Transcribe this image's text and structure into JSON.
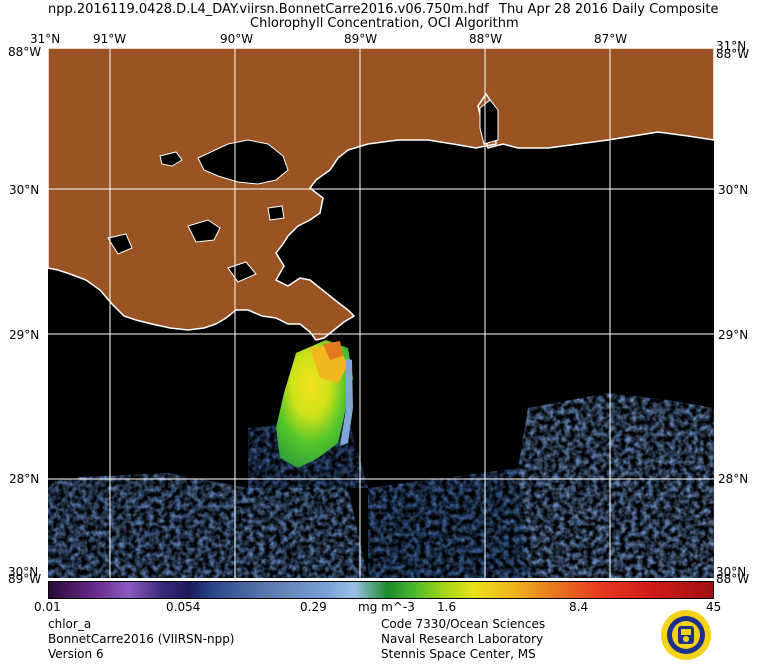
{
  "header": {
    "filename": "npp.2016119.0428.D.L4_DAY.viirsn.BonnetCarre2016.v06.750m.hdf",
    "date": "Thu Apr 28 2016 Daily Composite",
    "product": "Chlorophyll Concentration, OCI Algorithm"
  },
  "map": {
    "lon_top_labels": [
      "91°W",
      "90°W",
      "89°W",
      "88°W",
      "87°W"
    ],
    "lon_top_values": [
      -91,
      -90,
      -89,
      -88,
      -87
    ],
    "lat_labels": [
      "30°N",
      "29°N",
      "28°N"
    ],
    "lat_values": [
      30,
      29,
      28
    ],
    "corner_top_left_lat": "31°N",
    "corner_top_left_lon": "88°W",
    "corner_top_right_lat": "31°N",
    "corner_top_right_lon": "88°W",
    "corner_bottom_left_lat": "30°N",
    "corner_bottom_left_lon": "89°W",
    "corner_bottom_right_lat": "30°N",
    "corner_bottom_right_lon": "88°W",
    "colors": {
      "land": "#9a5323",
      "ocean": "#000000",
      "coast": "#ffffff",
      "grid": "#ffffff"
    }
  },
  "colorbar": {
    "ticks": [
      "0.01",
      "0.054",
      "0.29",
      "1.6",
      "8.4",
      "45"
    ],
    "tick_values": [
      0.01,
      0.054,
      0.29,
      1.6,
      8.4,
      45
    ],
    "units": "mg m^-3",
    "scale": "log"
  },
  "footer": {
    "left": [
      "chlor_a",
      "BonnetCarre2016 (VIIRSN-npp)",
      "Version 6"
    ],
    "right": [
      "Code 7330/Ocean Sciences",
      "Naval Research Laboratory",
      "Stennis Space Center, MS"
    ]
  }
}
